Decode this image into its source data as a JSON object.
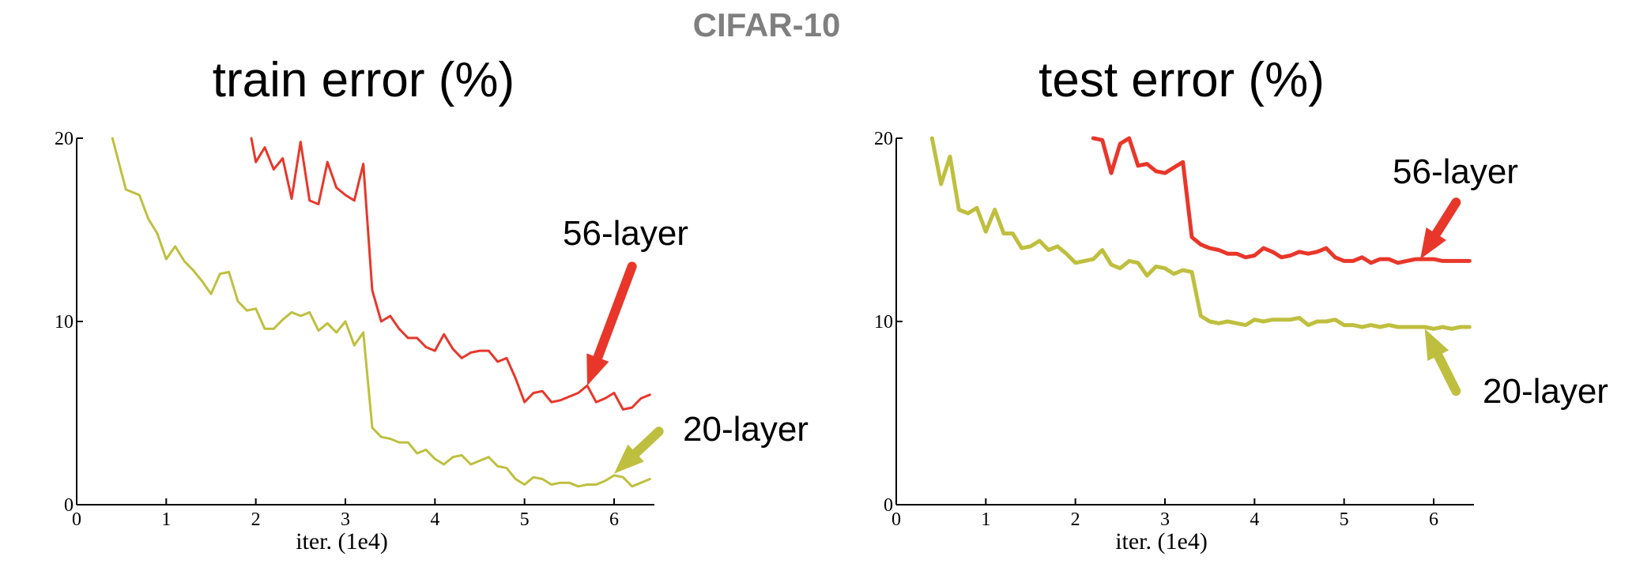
{
  "suptitle": "CIFAR-10",
  "colors": {
    "deep": "#e8372a",
    "shallow": "#bfbf3f"
  },
  "chart_data": [
    {
      "type": "line",
      "title": "train error (%)",
      "xlabel": "iter. (1e4)",
      "ylabel": "",
      "xlim": [
        0,
        6.45
      ],
      "ylim": [
        0,
        20
      ],
      "xticks": [
        0,
        1,
        2,
        3,
        4,
        5,
        6
      ],
      "yticks": [
        0,
        10,
        20
      ],
      "grid": false,
      "series": [
        {
          "name": "56-layer",
          "color": "#e8372a",
          "x": [
            1.95,
            2.0,
            2.1,
            2.2,
            2.3,
            2.4,
            2.5,
            2.6,
            2.7,
            2.8,
            2.9,
            3.0,
            3.1,
            3.2,
            3.3,
            3.4,
            3.5,
            3.6,
            3.7,
            3.8,
            3.9,
            4.0,
            4.1,
            4.2,
            4.3,
            4.4,
            4.5,
            4.6,
            4.7,
            4.8,
            4.9,
            5.0,
            5.1,
            5.2,
            5.3,
            5.4,
            5.5,
            5.6,
            5.7,
            5.8,
            5.9,
            6.0,
            6.1,
            6.2,
            6.3,
            6.4
          ],
          "y": [
            20.0,
            18.7,
            19.5,
            18.3,
            18.9,
            16.7,
            19.8,
            16.6,
            16.4,
            18.7,
            17.3,
            16.9,
            16.6,
            18.6,
            11.7,
            10.0,
            10.3,
            9.6,
            9.1,
            9.1,
            8.6,
            8.4,
            9.3,
            8.5,
            8.0,
            8.3,
            8.4,
            8.4,
            7.8,
            8.0,
            6.9,
            5.6,
            6.1,
            6.2,
            5.6,
            5.7,
            5.9,
            6.1,
            6.5,
            5.6,
            5.8,
            6.1,
            5.2,
            5.3,
            5.8,
            6.0
          ]
        },
        {
          "name": "20-layer",
          "color": "#bfbf3f",
          "x": [
            0.4,
            0.55,
            0.7,
            0.8,
            0.9,
            1.0,
            1.1,
            1.2,
            1.3,
            1.4,
            1.5,
            1.6,
            1.7,
            1.8,
            1.9,
            2.0,
            2.1,
            2.2,
            2.3,
            2.4,
            2.5,
            2.6,
            2.7,
            2.8,
            2.9,
            3.0,
            3.1,
            3.2,
            3.3,
            3.4,
            3.5,
            3.6,
            3.7,
            3.8,
            3.9,
            4.0,
            4.1,
            4.2,
            4.3,
            4.4,
            4.5,
            4.6,
            4.7,
            4.8,
            4.9,
            5.0,
            5.1,
            5.2,
            5.3,
            5.4,
            5.5,
            5.6,
            5.7,
            5.8,
            5.9,
            6.0,
            6.1,
            6.2,
            6.3,
            6.4
          ],
          "y": [
            20.0,
            17.2,
            16.9,
            15.6,
            14.8,
            13.4,
            14.1,
            13.3,
            12.8,
            12.2,
            11.5,
            12.6,
            12.7,
            11.1,
            10.6,
            10.7,
            9.6,
            9.6,
            10.1,
            10.5,
            10.3,
            10.5,
            9.5,
            9.9,
            9.4,
            10.0,
            8.7,
            9.4,
            4.2,
            3.7,
            3.6,
            3.4,
            3.4,
            2.8,
            3.0,
            2.5,
            2.2,
            2.6,
            2.7,
            2.2,
            2.4,
            2.6,
            2.1,
            2.0,
            1.4,
            1.1,
            1.5,
            1.4,
            1.1,
            1.2,
            1.2,
            1.0,
            1.1,
            1.1,
            1.3,
            1.6,
            1.5,
            1.0,
            1.2,
            1.4
          ]
        }
      ],
      "annotations": [
        {
          "text": "56-layer",
          "series": "56-layer",
          "from": [
            6.2,
            13.0
          ],
          "to": [
            5.7,
            6.5
          ]
        },
        {
          "text": "20-layer",
          "series": "20-layer",
          "from": [
            6.5,
            4.0
          ],
          "to": [
            6.0,
            1.7
          ]
        }
      ]
    },
    {
      "type": "line",
      "title": "test error (%)",
      "xlabel": "iter. (1e4)",
      "ylabel": "",
      "xlim": [
        0,
        6.45
      ],
      "ylim": [
        0,
        20
      ],
      "xticks": [
        0,
        1,
        2,
        3,
        4,
        5,
        6
      ],
      "yticks": [
        0,
        10,
        20
      ],
      "grid": false,
      "series": [
        {
          "name": "56-layer",
          "color": "#e8372a",
          "x": [
            2.2,
            2.3,
            2.4,
            2.5,
            2.6,
            2.7,
            2.8,
            2.9,
            3.0,
            3.1,
            3.2,
            3.3,
            3.4,
            3.5,
            3.6,
            3.7,
            3.8,
            3.9,
            4.0,
            4.1,
            4.2,
            4.3,
            4.4,
            4.5,
            4.6,
            4.7,
            4.8,
            4.9,
            5.0,
            5.1,
            5.2,
            5.3,
            5.4,
            5.5,
            5.6,
            5.7,
            5.8,
            5.9,
            6.0,
            6.1,
            6.2,
            6.3,
            6.4
          ],
          "y": [
            20.0,
            19.9,
            18.1,
            19.7,
            20.0,
            18.5,
            18.6,
            18.2,
            18.1,
            18.4,
            18.7,
            14.6,
            14.2,
            14.0,
            13.9,
            13.7,
            13.7,
            13.5,
            13.6,
            14.0,
            13.8,
            13.5,
            13.6,
            13.8,
            13.7,
            13.8,
            14.0,
            13.5,
            13.3,
            13.3,
            13.5,
            13.2,
            13.4,
            13.4,
            13.2,
            13.3,
            13.4,
            13.4,
            13.4,
            13.3,
            13.3,
            13.3,
            13.3
          ]
        },
        {
          "name": "20-layer",
          "color": "#bfbf3f",
          "x": [
            0.4,
            0.5,
            0.6,
            0.7,
            0.8,
            0.9,
            1.0,
            1.1,
            1.2,
            1.3,
            1.4,
            1.5,
            1.6,
            1.7,
            1.8,
            1.9,
            2.0,
            2.1,
            2.2,
            2.3,
            2.4,
            2.5,
            2.6,
            2.7,
            2.8,
            2.9,
            3.0,
            3.1,
            3.2,
            3.3,
            3.4,
            3.5,
            3.6,
            3.7,
            3.8,
            3.9,
            4.0,
            4.1,
            4.2,
            4.3,
            4.4,
            4.5,
            4.6,
            4.7,
            4.8,
            4.9,
            5.0,
            5.1,
            5.2,
            5.3,
            5.4,
            5.5,
            5.6,
            5.7,
            5.8,
            5.9,
            6.0,
            6.1,
            6.2,
            6.3,
            6.4
          ],
          "y": [
            20.0,
            17.5,
            19.0,
            16.1,
            15.9,
            16.2,
            14.9,
            16.1,
            14.8,
            14.8,
            14.0,
            14.1,
            14.4,
            13.9,
            14.1,
            13.7,
            13.2,
            13.3,
            13.4,
            13.9,
            13.1,
            12.9,
            13.3,
            13.2,
            12.5,
            13.0,
            12.9,
            12.6,
            12.8,
            12.7,
            10.3,
            10.0,
            9.9,
            10.0,
            9.9,
            9.8,
            10.1,
            10.0,
            10.1,
            10.1,
            10.1,
            10.2,
            9.8,
            10.0,
            10.0,
            10.1,
            9.8,
            9.8,
            9.7,
            9.8,
            9.7,
            9.8,
            9.7,
            9.7,
            9.7,
            9.7,
            9.6,
            9.7,
            9.6,
            9.7,
            9.7
          ]
        }
      ],
      "annotations": [
        {
          "text": "56-layer",
          "series": "56-layer",
          "from": [
            6.25,
            16.5
          ],
          "to": [
            5.85,
            13.4
          ]
        },
        {
          "text": "20-layer",
          "series": "20-layer",
          "from": [
            6.25,
            6.2
          ],
          "to": [
            5.9,
            9.6
          ]
        }
      ]
    }
  ]
}
